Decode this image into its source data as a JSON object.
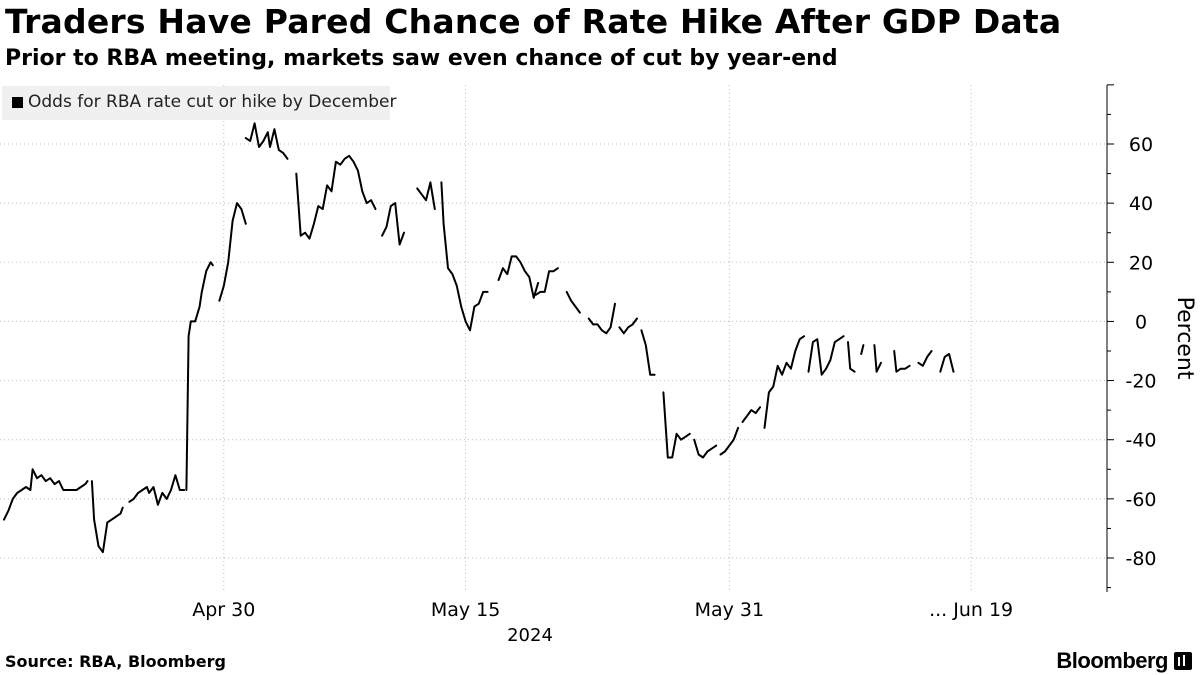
{
  "header": {
    "title": "Traders Have Pared Chance of Rate Hike After GDP Data",
    "subtitle": "Prior to RBA meeting, markets saw even chance of cut by year-end"
  },
  "legend": {
    "label": "Odds for RBA rate cut or hike by December"
  },
  "footer": {
    "source": "Source: RBA, Bloomberg",
    "brand": "Bloomberg"
  },
  "colors": {
    "line": "#000000",
    "grid": "#bdbdbd",
    "legend_bg": "#f0f0f0"
  },
  "chart_data": {
    "type": "line",
    "title": "Traders Have Pared Chance of Rate Hike After GDP Data",
    "subtitle": "Prior to RBA meeting, markets saw even chance of cut by year-end",
    "ylabel": "Percent",
    "xlabel": "2024",
    "ylim": [
      -90,
      80
    ],
    "yticks": [
      60,
      40,
      20,
      0,
      -20,
      -40,
      -60,
      -80
    ],
    "xlim": [
      0,
      50
    ],
    "xticks": [
      {
        "x": 10,
        "label": "Apr 30"
      },
      {
        "x": 21,
        "label": "May 15"
      },
      {
        "x": 33,
        "label": "May 31"
      },
      {
        "x": 44,
        "label": "... Jun 19"
      }
    ],
    "year_label": "2024",
    "legend_position": "top-left",
    "grid": true,
    "series": [
      {
        "name": "Odds for RBA rate cut or hike by December",
        "segments": [
          [
            [
              0,
              -67
            ],
            [
              0.2,
              -64
            ],
            [
              0.4,
              -60
            ],
            [
              0.6,
              -58
            ],
            [
              0.8,
              -57
            ],
            [
              1,
              -56
            ],
            [
              1.2,
              -57
            ],
            [
              1.3,
              -50
            ],
            [
              1.5,
              -53
            ],
            [
              1.7,
              -52
            ],
            [
              1.9,
              -54
            ],
            [
              2.1,
              -53
            ],
            [
              2.3,
              -55
            ],
            [
              2.5,
              -54
            ],
            [
              2.7,
              -57
            ],
            [
              3.0,
              -57
            ],
            [
              3.3,
              -57
            ],
            [
              3.5,
              -56
            ],
            [
              3.7,
              -55
            ],
            [
              3.8,
              -54
            ]
          ],
          [
            [
              4,
              -54
            ],
            [
              4.1,
              -67
            ],
            [
              4.3,
              -76
            ],
            [
              4.5,
              -78
            ],
            [
              4.7,
              -68
            ],
            [
              4.9,
              -67
            ],
            [
              5.1,
              -66
            ],
            [
              5.3,
              -65
            ],
            [
              5.4,
              -63
            ]
          ],
          [
            [
              5.7,
              -61
            ],
            [
              5.9,
              -60
            ],
            [
              6.1,
              -58
            ],
            [
              6.3,
              -57
            ],
            [
              6.5,
              -56
            ],
            [
              6.6,
              -58
            ],
            [
              6.8,
              -56
            ],
            [
              7.0,
              -62
            ],
            [
              7.2,
              -58
            ],
            [
              7.4,
              -60
            ],
            [
              7.6,
              -57
            ],
            [
              7.8,
              -52
            ],
            [
              8.0,
              -57
            ],
            [
              8.2,
              -57
            ]
          ],
          [
            [
              8.3,
              -57
            ],
            [
              8.4,
              -5
            ],
            [
              8.5,
              0
            ],
            [
              8.7,
              0
            ],
            [
              8.9,
              5
            ],
            [
              9.0,
              10
            ],
            [
              9.2,
              17
            ],
            [
              9.4,
              20
            ],
            [
              9.5,
              19
            ]
          ],
          [
            [
              9.8,
              7
            ],
            [
              10.0,
              12
            ],
            [
              10.2,
              20
            ],
            [
              10.4,
              34
            ],
            [
              10.6,
              40
            ],
            [
              10.8,
              38
            ],
            [
              11.0,
              33
            ]
          ],
          [
            [
              11.0,
              62
            ],
            [
              11.2,
              61
            ],
            [
              11.4,
              67
            ],
            [
              11.6,
              59
            ],
            [
              11.8,
              61
            ],
            [
              12.0,
              64
            ],
            [
              12.1,
              59
            ],
            [
              12.3,
              65
            ],
            [
              12.5,
              58
            ],
            [
              12.7,
              57
            ],
            [
              12.9,
              55
            ]
          ],
          [
            [
              13.3,
              50
            ],
            [
              13.5,
              29
            ],
            [
              13.7,
              30
            ],
            [
              13.9,
              28
            ],
            [
              14.1,
              33
            ],
            [
              14.3,
              39
            ],
            [
              14.5,
              38
            ],
            [
              14.7,
              46
            ],
            [
              14.9,
              44
            ],
            [
              15.1,
              54
            ],
            [
              15.3,
              53
            ],
            [
              15.5,
              55
            ],
            [
              15.7,
              56
            ],
            [
              15.9,
              54
            ],
            [
              16.1,
              51
            ],
            [
              16.3,
              44
            ],
            [
              16.5,
              40
            ],
            [
              16.7,
              41
            ],
            [
              16.9,
              38
            ]
          ],
          [
            [
              17.2,
              29
            ],
            [
              17.4,
              32
            ],
            [
              17.6,
              39
            ],
            [
              17.8,
              40
            ],
            [
              18.0,
              26
            ],
            [
              18.2,
              30
            ]
          ],
          [
            [
              18.8,
              45
            ],
            [
              19.0,
              43
            ],
            [
              19.2,
              41
            ],
            [
              19.4,
              47
            ],
            [
              19.6,
              38
            ]
          ],
          [
            [
              19.9,
              47
            ],
            [
              20.0,
              33
            ],
            [
              20.2,
              18
            ],
            [
              20.4,
              16
            ],
            [
              20.6,
              12
            ],
            [
              20.8,
              5
            ],
            [
              21.0,
              0
            ],
            [
              21.2,
              -3
            ],
            [
              21.4,
              5
            ],
            [
              21.6,
              6
            ],
            [
              21.8,
              10
            ],
            [
              22.0,
              10
            ]
          ],
          [
            [
              22.5,
              14
            ],
            [
              22.7,
              18
            ],
            [
              22.9,
              16
            ],
            [
              23.1,
              22
            ],
            [
              23.3,
              22
            ],
            [
              23.5,
              20
            ],
            [
              23.7,
              17
            ],
            [
              23.9,
              15
            ],
            [
              24.1,
              8
            ],
            [
              24.3,
              13
            ]
          ],
          [
            [
              24.2,
              9
            ],
            [
              24.4,
              10
            ],
            [
              24.6,
              10
            ],
            [
              24.8,
              17
            ],
            [
              25.0,
              17
            ],
            [
              25.2,
              18
            ]
          ],
          [
            [
              25.6,
              10
            ],
            [
              25.8,
              7
            ],
            [
              26.0,
              5
            ],
            [
              26.2,
              3
            ]
          ],
          [
            [
              26.6,
              1
            ],
            [
              26.8,
              -1
            ],
            [
              27.0,
              -1
            ],
            [
              27.2,
              -3
            ],
            [
              27.4,
              -4
            ],
            [
              27.6,
              -2
            ],
            [
              27.8,
              6
            ]
          ],
          [
            [
              28.0,
              -2
            ],
            [
              28.2,
              -4
            ],
            [
              28.4,
              -2
            ],
            [
              28.6,
              -1
            ],
            [
              28.8,
              1
            ]
          ],
          [
            [
              29.0,
              -3
            ],
            [
              29.2,
              -8
            ],
            [
              29.4,
              -18
            ],
            [
              29.6,
              -18
            ]
          ],
          [
            [
              30.0,
              -24
            ],
            [
              30.2,
              -46
            ],
            [
              30.4,
              -46
            ],
            [
              30.6,
              -38
            ],
            [
              30.8,
              -40
            ],
            [
              31.0,
              -39
            ],
            [
              31.2,
              -38
            ]
          ],
          [
            [
              31.4,
              -40
            ],
            [
              31.6,
              -45
            ],
            [
              31.8,
              -46
            ],
            [
              32.0,
              -44
            ],
            [
              32.2,
              -43
            ],
            [
              32.4,
              -42
            ]
          ],
          [
            [
              32.6,
              -45
            ],
            [
              32.8,
              -44
            ],
            [
              33.0,
              -42
            ],
            [
              33.2,
              -40
            ],
            [
              33.4,
              -36
            ]
          ],
          [
            [
              33.6,
              -34
            ],
            [
              33.8,
              -32
            ],
            [
              34.0,
              -30
            ],
            [
              34.2,
              -31
            ],
            [
              34.4,
              -29
            ]
          ],
          [
            [
              34.6,
              -36
            ],
            [
              34.8,
              -24
            ],
            [
              35.0,
              -22
            ],
            [
              35.2,
              -15
            ],
            [
              35.4,
              -18
            ],
            [
              35.6,
              -14
            ],
            [
              35.8,
              -16
            ],
            [
              36.0,
              -10
            ],
            [
              36.2,
              -6
            ],
            [
              36.4,
              -5
            ]
          ],
          [
            [
              36.6,
              -17
            ],
            [
              36.8,
              -7
            ],
            [
              37.0,
              -6
            ],
            [
              37.2,
              -18
            ],
            [
              37.4,
              -16
            ],
            [
              37.6,
              -13
            ],
            [
              37.8,
              -7
            ],
            [
              38.0,
              -6
            ],
            [
              38.2,
              -5
            ]
          ],
          [
            [
              38.4,
              -7
            ],
            [
              38.5,
              -16
            ],
            [
              38.7,
              -17
            ]
          ],
          [
            [
              39.0,
              -11
            ],
            [
              39.1,
              -8
            ]
          ],
          [
            [
              39.6,
              -8
            ],
            [
              39.7,
              -17
            ],
            [
              39.9,
              -14
            ]
          ],
          [
            [
              40.5,
              -10
            ],
            [
              40.6,
              -17
            ],
            [
              40.8,
              -16
            ],
            [
              41.0,
              -16
            ],
            [
              41.2,
              -15
            ]
          ],
          [
            [
              41.6,
              -14
            ],
            [
              41.8,
              -15
            ],
            [
              42.0,
              -12
            ],
            [
              42.2,
              -10
            ]
          ],
          [
            [
              42.6,
              -17
            ],
            [
              42.8,
              -12
            ],
            [
              43.0,
              -11
            ],
            [
              43.2,
              -17
            ]
          ]
        ]
      }
    ]
  }
}
